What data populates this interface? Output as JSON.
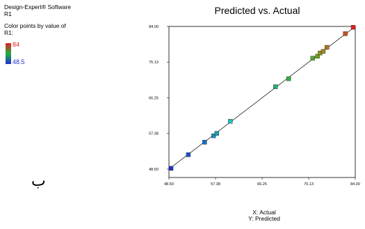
{
  "software": {
    "line1": "Design-Expert® Software",
    "line2": "R1"
  },
  "legend": {
    "caption1": "Color points by value of",
    "caption2": "R1:",
    "max_label": "84",
    "min_label": "48.5",
    "max_color": "#e02020",
    "mid_color": "#20b040",
    "min_color": "#2030d0"
  },
  "figure_label": "ب",
  "axis_captions": {
    "x": "X: Actual",
    "y": "Y: Predicted"
  },
  "chart_data": {
    "type": "scatter",
    "title": "Predicted vs. Actual",
    "xlabel": "Actual",
    "ylabel": "Predicted",
    "xlim": [
      48.5,
      84.0
    ],
    "ylim": [
      48.5,
      84.0
    ],
    "x_ticks": [
      "48.50",
      "57.38",
      "66.25",
      "75.13",
      "84.00"
    ],
    "y_ticks": [
      "48.50",
      "57.38",
      "66.25",
      "75.13",
      "84.00"
    ],
    "fit_line": [
      [
        48.5,
        48.5
      ],
      [
        84.0,
        84.0
      ]
    ],
    "points": [
      {
        "x": 48.5,
        "y": 48.7,
        "color": "#2030d0"
      },
      {
        "x": 52.2,
        "y": 52.1,
        "color": "#2050c8"
      },
      {
        "x": 55.3,
        "y": 55.2,
        "color": "#1870c0"
      },
      {
        "x": 57.0,
        "y": 56.8,
        "color": "#1890b8"
      },
      {
        "x": 57.6,
        "y": 57.4,
        "color": "#18a0b0"
      },
      {
        "x": 60.2,
        "y": 60.4,
        "color": "#20c0b8"
      },
      {
        "x": 68.8,
        "y": 69.0,
        "color": "#20b070"
      },
      {
        "x": 71.3,
        "y": 71.0,
        "color": "#30b040"
      },
      {
        "x": 75.9,
        "y": 76.1,
        "color": "#50a828"
      },
      {
        "x": 76.8,
        "y": 76.6,
        "color": "#70a020"
      },
      {
        "x": 77.3,
        "y": 77.4,
        "color": "#889820"
      },
      {
        "x": 77.9,
        "y": 77.8,
        "color": "#a08820"
      },
      {
        "x": 78.6,
        "y": 78.8,
        "color": "#b07020"
      },
      {
        "x": 82.1,
        "y": 82.2,
        "color": "#c85020"
      },
      {
        "x": 84.0,
        "y": 83.8,
        "color": "#e02020"
      }
    ]
  }
}
